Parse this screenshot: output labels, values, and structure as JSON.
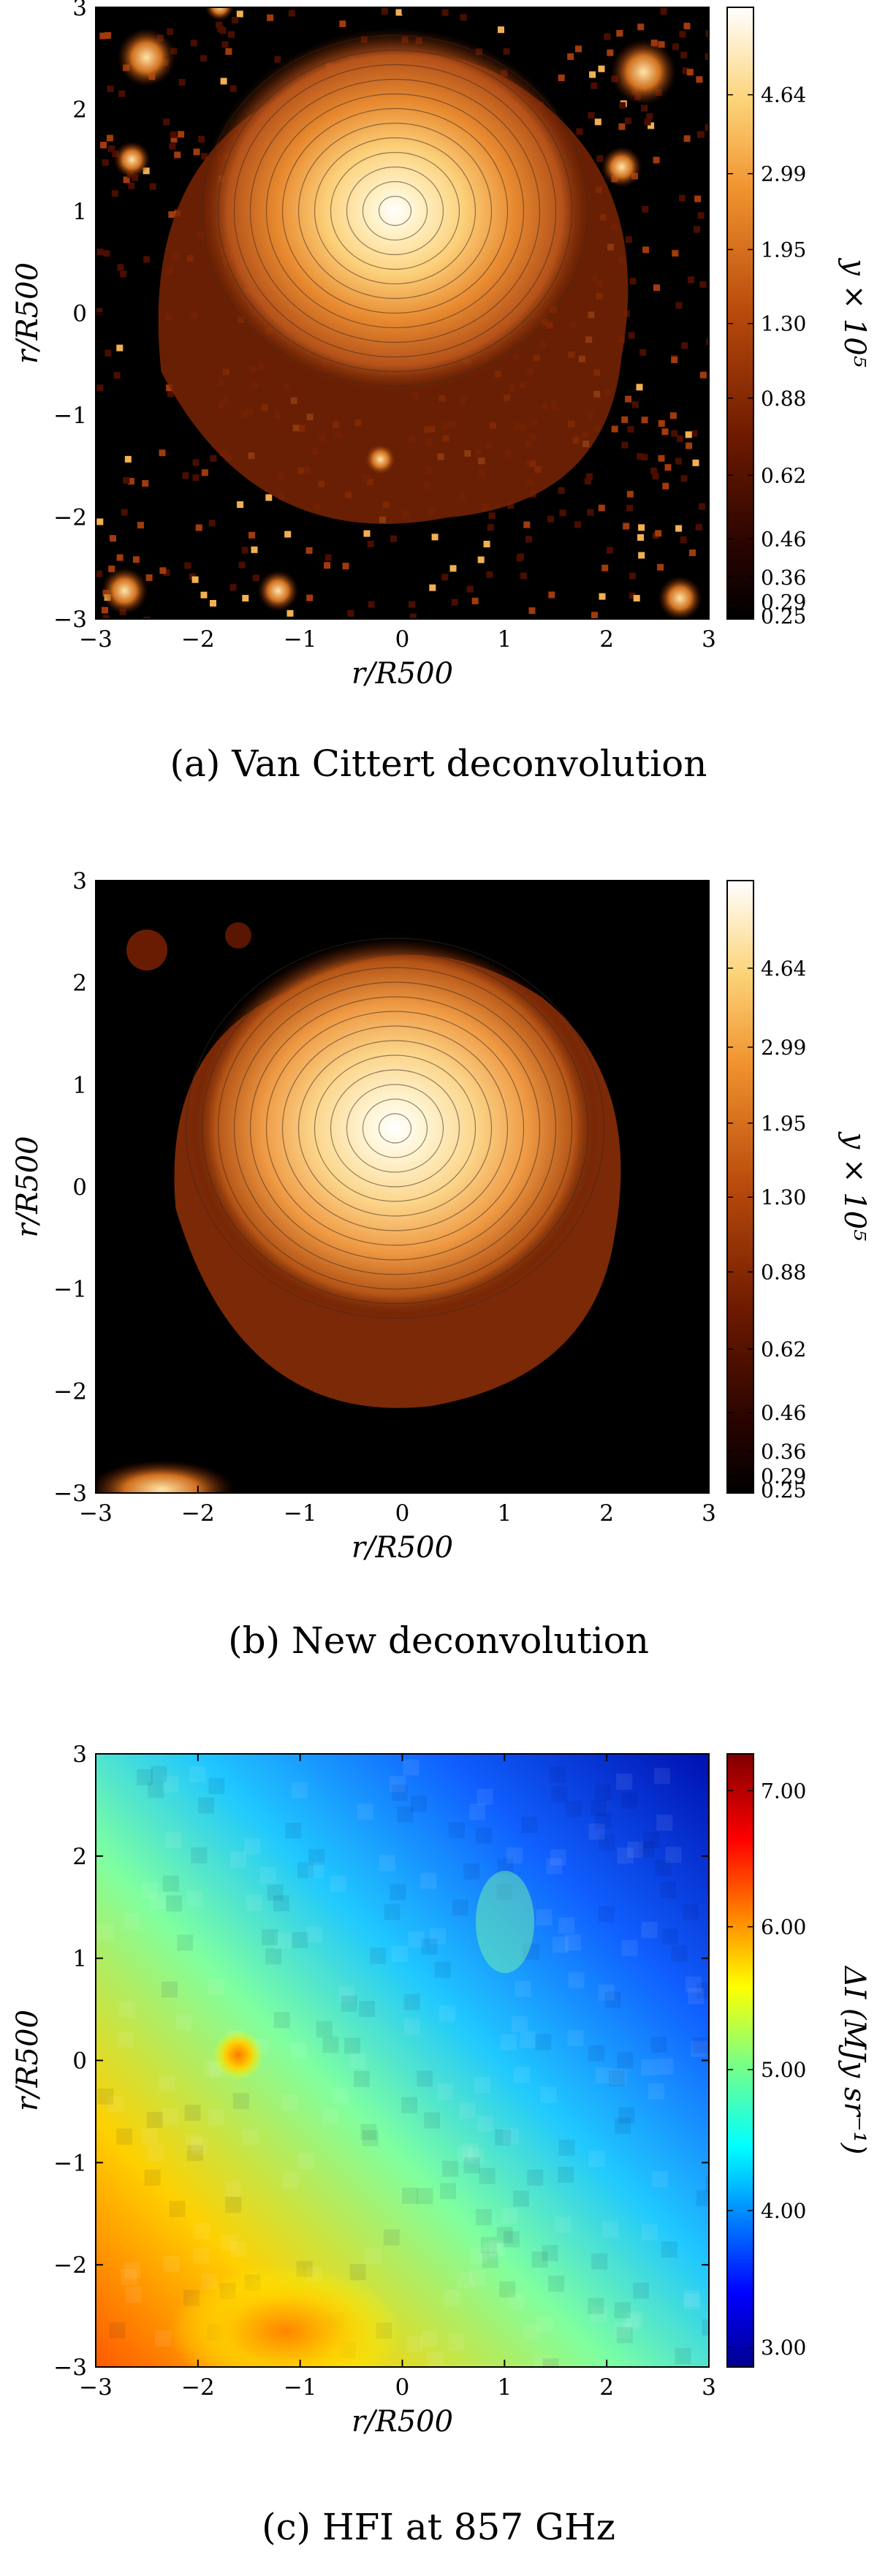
{
  "chart_data": [
    {
      "type": "heatmap",
      "caption": "(a) Van Cittert deconvolution",
      "xlabel": "r/R500",
      "ylabel": "r/R500",
      "xlim": [
        -3,
        3
      ],
      "ylim": [
        -3,
        3
      ],
      "x_ticks": [
        "−3",
        "−2",
        "−1",
        "0",
        "1",
        "2",
        "3"
      ],
      "y_ticks": [
        "−3",
        "−2",
        "−1",
        "0",
        "1",
        "2",
        "3"
      ],
      "colorbar": {
        "label": "y × 10⁵",
        "ticks": [
          "4.64",
          "2.99",
          "1.95",
          "1.30",
          "0.88",
          "0.62",
          "0.46",
          "0.36",
          "0.29",
          "0.25"
        ],
        "colormap": "afmhot"
      },
      "contours": true
    },
    {
      "type": "heatmap",
      "caption": "(b) New deconvolution",
      "xlabel": "r/R500",
      "ylabel": "r/R500",
      "xlim": [
        -3,
        3
      ],
      "ylim": [
        -3,
        3
      ],
      "x_ticks": [
        "−3",
        "−2",
        "−1",
        "0",
        "1",
        "2",
        "3"
      ],
      "y_ticks": [
        "−3",
        "−2",
        "−1",
        "0",
        "1",
        "2",
        "3"
      ],
      "colorbar": {
        "label": "y × 10⁵",
        "ticks": [
          "4.64",
          "2.99",
          "1.95",
          "1.30",
          "0.88",
          "0.62",
          "0.46",
          "0.36",
          "0.29",
          "0.25"
        ],
        "colormap": "afmhot"
      },
      "contours": true
    },
    {
      "type": "heatmap",
      "caption": "(c) HFI at 857 GHz",
      "xlabel": "r/R500",
      "ylabel": "r/R500",
      "xlim": [
        -3,
        3
      ],
      "ylim": [
        -3,
        3
      ],
      "x_ticks": [
        "−3",
        "−2",
        "−1",
        "0",
        "1",
        "2",
        "3"
      ],
      "y_ticks": [
        "−3",
        "−2",
        "−1",
        "0",
        "1",
        "2",
        "3"
      ],
      "colorbar": {
        "label": "ΔI (MJy sr⁻¹)",
        "ticks": [
          "7.00",
          "6.00",
          "5.00",
          "4.00",
          "3.00"
        ],
        "colormap": "jet"
      },
      "contours": false
    }
  ],
  "colors": {
    "axis": "#000000",
    "background": "#ffffff",
    "map_floor": "#000000"
  }
}
